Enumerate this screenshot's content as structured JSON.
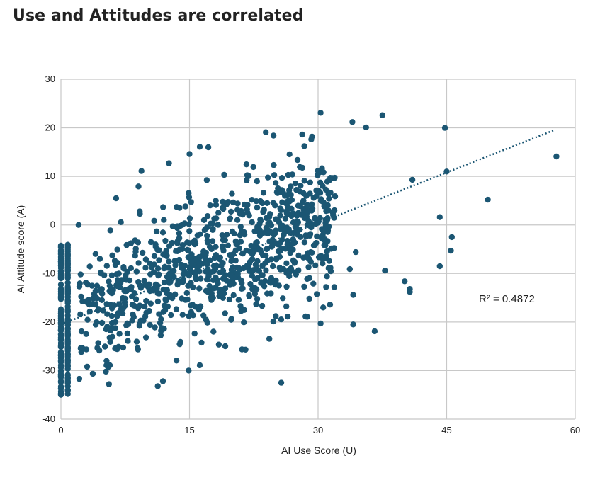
{
  "page_title": "Use and Attitudes are correlated",
  "chart_data": {
    "type": "scatter",
    "title": "Use and Attitudes are correlated",
    "xlabel": "AI Use Score (U)",
    "ylabel": "AI Attitude score (A)",
    "xlim": [
      0,
      60
    ],
    "ylim": [
      -40,
      30
    ],
    "xticks": [
      0,
      15,
      30,
      45,
      60
    ],
    "yticks": [
      -40,
      -30,
      -20,
      -10,
      0,
      10,
      20,
      30
    ],
    "grid": true,
    "marker_color": "#1b5673",
    "trendline": {
      "style": "dotted",
      "color": "#1b5673",
      "from": [
        0,
        -20.5
      ],
      "to": [
        57.5,
        19.5
      ],
      "annotation": "R² = 0.4872"
    },
    "outliers": [
      [
        57.8,
        14.1
      ],
      [
        49.8,
        5.2
      ],
      [
        44.8,
        20.0
      ],
      [
        30.3,
        23.1
      ],
      [
        34.0,
        21.2
      ],
      [
        37.5,
        22.6
      ],
      [
        35.6,
        20.1
      ],
      [
        23.9,
        19.1
      ],
      [
        24.8,
        18.4
      ],
      [
        29.3,
        18.2
      ],
      [
        16.2,
        16.1
      ],
      [
        17.2,
        16.0
      ],
      [
        15.0,
        14.6
      ],
      [
        41.0,
        9.3
      ],
      [
        44.2,
        1.6
      ],
      [
        45.6,
        -2.5
      ],
      [
        45.5,
        -5.3
      ],
      [
        44.2,
        -8.5
      ],
      [
        40.7,
        -13.2
      ],
      [
        40.7,
        -13.8
      ],
      [
        40.1,
        -11.6
      ],
      [
        36.6,
        -21.9
      ],
      [
        34.1,
        -20.5
      ],
      [
        30.3,
        -20.3
      ],
      [
        25.7,
        -32.5
      ],
      [
        14.9,
        -30.0
      ],
      [
        16.2,
        -28.9
      ],
      [
        11.3,
        -33.2
      ],
      [
        11.9,
        -32.2
      ],
      [
        5.6,
        -32.8
      ],
      [
        0.0,
        -35.0
      ],
      [
        34.1,
        -14.4
      ],
      [
        31.4,
        -16.4
      ],
      [
        9.4,
        11.1
      ],
      [
        12.6,
        12.7
      ],
      [
        37.8,
        -9.4
      ],
      [
        34.4,
        -5.6
      ],
      [
        33.7,
        -9.1
      ],
      [
        45.0,
        11.0
      ]
    ],
    "generated_points": {
      "count": 900,
      "description_rule": "main cloud follows trendline y ≈ -20.5 + 0.7·x with spread ±10"
    },
    "x0_column": {
      "x": [
        0.0,
        0.8
      ],
      "y_range": [
        -35,
        -4
      ]
    }
  }
}
